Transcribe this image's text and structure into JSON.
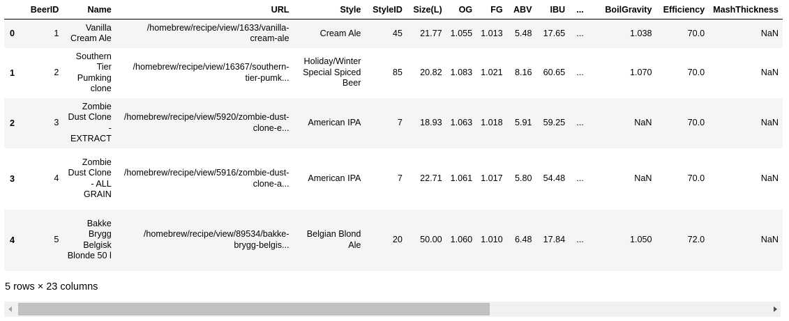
{
  "table": {
    "columns": [
      "",
      "BeerID",
      "Name",
      "URL",
      "Style",
      "StyleID",
      "Size(L)",
      "OG",
      "FG",
      "ABV",
      "IBU",
      "...",
      "BoilGravity",
      "Efficiency",
      "MashThickness"
    ],
    "rows": [
      {
        "index": "0",
        "BeerID": "1",
        "Name": "Vanilla Cream Ale",
        "URL": "/homebrew/recipe/view/1633/vanilla-cream-ale",
        "Style": "Cream Ale",
        "StyleID": "45",
        "Size": "21.77",
        "OG": "1.055",
        "FG": "1.013",
        "ABV": "5.48",
        "IBU": "17.65",
        "ellipsis": "...",
        "BoilGravity": "1.038",
        "Efficiency": "70.0",
        "MashThickness": "NaN"
      },
      {
        "index": "1",
        "BeerID": "2",
        "Name": "Southern Tier Pumking clone",
        "URL": "/homebrew/recipe/view/16367/southern-tier-pumk...",
        "Style": "Holiday/Winter Special Spiced Beer",
        "StyleID": "85",
        "Size": "20.82",
        "OG": "1.083",
        "FG": "1.021",
        "ABV": "8.16",
        "IBU": "60.65",
        "ellipsis": "...",
        "BoilGravity": "1.070",
        "Efficiency": "70.0",
        "MashThickness": "NaN"
      },
      {
        "index": "2",
        "BeerID": "3",
        "Name": "Zombie Dust Clone - EXTRACT",
        "URL": "/homebrew/recipe/view/5920/zombie-dust-clone-e...",
        "Style": "American IPA",
        "StyleID": "7",
        "Size": "18.93",
        "OG": "1.063",
        "FG": "1.018",
        "ABV": "5.91",
        "IBU": "59.25",
        "ellipsis": "...",
        "BoilGravity": "NaN",
        "Efficiency": "70.0",
        "MashThickness": "NaN"
      },
      {
        "index": "3",
        "BeerID": "4",
        "Name": "Zombie Dust Clone - ALL GRAIN",
        "URL": "/homebrew/recipe/view/5916/zombie-dust-clone-a...",
        "Style": "American IPA",
        "StyleID": "7",
        "Size": "22.71",
        "OG": "1.061",
        "FG": "1.017",
        "ABV": "5.80",
        "IBU": "54.48",
        "ellipsis": "...",
        "BoilGravity": "NaN",
        "Efficiency": "70.0",
        "MashThickness": "NaN"
      },
      {
        "index": "4",
        "BeerID": "5",
        "Name": "Bakke Brygg Belgisk Blonde 50 l",
        "URL": "/homebrew/recipe/view/89534/bakke-brygg-belgis...",
        "Style": "Belgian Blond Ale",
        "StyleID": "20",
        "Size": "50.00",
        "OG": "1.060",
        "FG": "1.010",
        "ABV": "6.48",
        "IBU": "17.84",
        "ellipsis": "...",
        "BoilGravity": "1.050",
        "Efficiency": "72.0",
        "MashThickness": "NaN"
      }
    ]
  },
  "footer": {
    "shape_text": "5 rows × 23 columns"
  },
  "scrollbar": {
    "left_arrow_icon": "triangle-left-icon",
    "right_arrow_icon": "triangle-right-icon"
  },
  "colors": {
    "stripe": "#f5f5f5",
    "scroll_track": "#f1f1f1",
    "scroll_thumb": "#c1c1c1"
  }
}
